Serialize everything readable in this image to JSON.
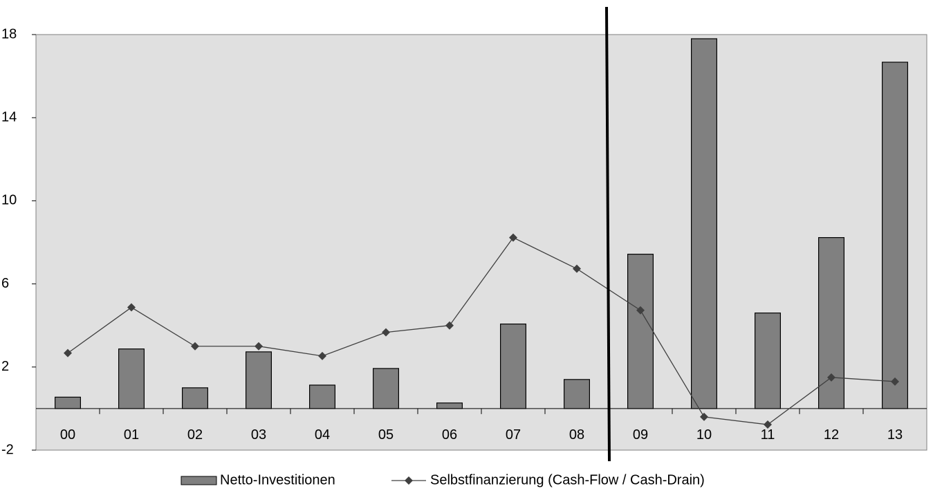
{
  "chart_data": {
    "type": "bar+line",
    "categories": [
      "00",
      "01",
      "02",
      "03",
      "04",
      "05",
      "06",
      "07",
      "08",
      "09",
      "10",
      "11",
      "12",
      "13"
    ],
    "series": [
      {
        "name": "Netto-Investitionen",
        "type": "bar",
        "color": "#808080",
        "values": [
          0.55,
          2.87,
          1.0,
          2.73,
          1.13,
          1.93,
          0.27,
          4.07,
          1.4,
          7.43,
          17.8,
          4.6,
          8.23,
          16.67
        ]
      },
      {
        "name": "Selbstfinanzierung (Cash-Flow / Cash-Drain)",
        "type": "line",
        "color": "#404040",
        "values": [
          2.67,
          4.87,
          3.0,
          3.0,
          2.53,
          3.67,
          4.0,
          8.23,
          6.73,
          4.73,
          -0.4,
          -0.77,
          1.5,
          1.3
        ]
      }
    ],
    "ylim": [
      -2,
      18
    ],
    "yticks": [
      -2,
      2,
      6,
      10,
      14,
      18
    ],
    "grid": false,
    "legend": "bottom"
  }
}
